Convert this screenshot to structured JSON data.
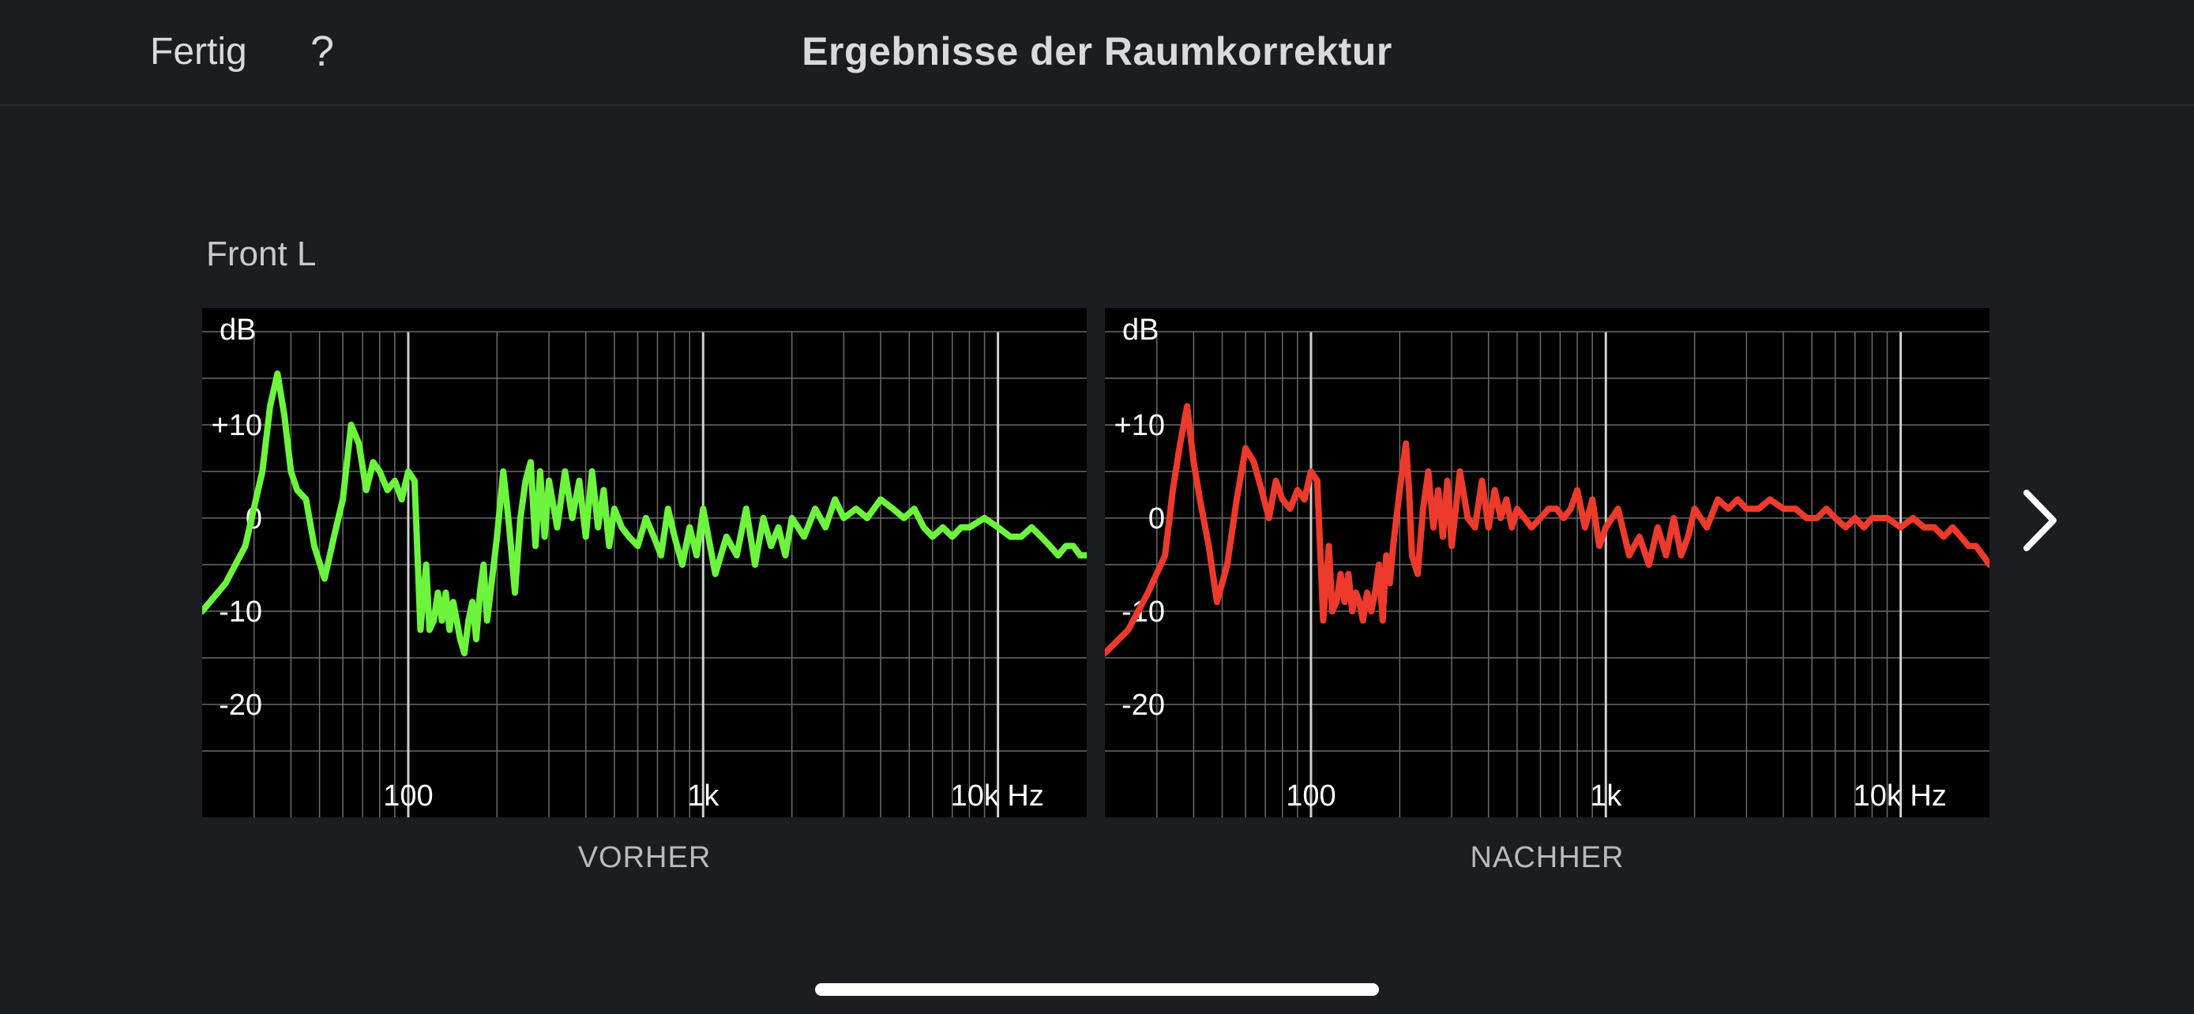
{
  "header": {
    "done_label": "Fertig",
    "help_label": "?",
    "title": "Ergebnisse der Raumkorrektur"
  },
  "section": {
    "label": "Front L"
  },
  "icons": {
    "next": "chevron-right-icon"
  },
  "colors": {
    "before": "#6cf53c",
    "after": "#ee3a2b",
    "grid": "#6b6b6b",
    "background": "#1c1d20"
  },
  "chart_data": [
    {
      "type": "line",
      "caption": "VORHER",
      "ylabel": "dB",
      "x_scale": "log",
      "xlim": [
        20,
        20000
      ],
      "ylim": [
        -30,
        20
      ],
      "y_ticks": [
        {
          "value": 10,
          "label": "+10"
        },
        {
          "value": 0,
          "label": "0"
        },
        {
          "value": -10,
          "label": "-10"
        },
        {
          "value": -20,
          "label": "-20"
        }
      ],
      "x_ticks": [
        {
          "value": 100,
          "label": "100"
        },
        {
          "value": 1000,
          "label": "1k"
        },
        {
          "value": 10000,
          "label": "10k Hz"
        }
      ],
      "series": [
        {
          "color": "#6cf53c",
          "x": [
            20,
            24,
            28,
            32,
            34,
            36,
            38,
            40,
            42,
            45,
            48,
            52,
            56,
            60,
            64,
            68,
            72,
            76,
            80,
            85,
            90,
            95,
            100,
            105,
            110,
            115,
            118,
            122,
            126,
            130,
            134,
            138,
            142,
            146,
            150,
            155,
            160,
            165,
            170,
            175,
            180,
            185,
            190,
            200,
            210,
            215,
            220,
            230,
            240,
            250,
            260,
            270,
            280,
            290,
            300,
            320,
            340,
            360,
            380,
            400,
            420,
            440,
            460,
            480,
            500,
            530,
            560,
            600,
            640,
            680,
            720,
            760,
            800,
            850,
            900,
            950,
            1000,
            1100,
            1200,
            1300,
            1400,
            1500,
            1600,
            1700,
            1800,
            1900,
            2000,
            2200,
            2400,
            2600,
            2800,
            3000,
            3300,
            3600,
            4000,
            4400,
            4800,
            5200,
            5600,
            6000,
            6500,
            7000,
            7500,
            8000,
            9000,
            10000,
            11000,
            12000,
            13000,
            14000,
            15000,
            16000,
            17000,
            18000,
            19000,
            20000
          ],
          "y": [
            -10,
            -7,
            -3,
            5,
            12,
            15.5,
            11,
            5,
            3,
            2,
            -3,
            -6.5,
            -2,
            2,
            10,
            8,
            3,
            6,
            5,
            3,
            4,
            2,
            5,
            4,
            -12,
            -5,
            -12,
            -11,
            -8,
            -11,
            -8,
            -12,
            -9,
            -11,
            -13,
            -14.5,
            -11,
            -9,
            -13,
            -8,
            -5,
            -11,
            -8,
            -2,
            5,
            2,
            -1,
            -8,
            0,
            4,
            6,
            -3,
            5,
            -2,
            4,
            -1,
            5,
            0,
            4,
            -2,
            5,
            -1,
            3,
            -3,
            1,
            -1,
            -2,
            -3,
            0,
            -2,
            -4,
            1,
            -2,
            -5,
            -1,
            -4,
            1,
            -6,
            -2,
            -4,
            1,
            -5,
            0,
            -3,
            -1,
            -4,
            0,
            -2,
            1,
            -1,
            2,
            0,
            1,
            0,
            2,
            1,
            0,
            1,
            -1,
            -2,
            -1,
            -2,
            -1,
            -1,
            0,
            -1,
            -2,
            -2,
            -1,
            -2,
            -3,
            -4,
            -3,
            -3,
            -4,
            -4
          ]
        }
      ]
    },
    {
      "type": "line",
      "caption": "NACHHER",
      "ylabel": "dB",
      "x_scale": "log",
      "xlim": [
        20,
        20000
      ],
      "ylim": [
        -30,
        20
      ],
      "y_ticks": [
        {
          "value": 10,
          "label": "+10"
        },
        {
          "value": 0,
          "label": "0"
        },
        {
          "value": -10,
          "label": "-10"
        },
        {
          "value": -20,
          "label": "-20"
        }
      ],
      "x_ticks": [
        {
          "value": 100,
          "label": "100"
        },
        {
          "value": 1000,
          "label": "1k"
        },
        {
          "value": 10000,
          "label": "10k Hz"
        }
      ],
      "series": [
        {
          "color": "#ee3a2b",
          "x": [
            20,
            24,
            28,
            32,
            34,
            36,
            38,
            40,
            42,
            45,
            48,
            52,
            56,
            60,
            64,
            68,
            72,
            76,
            80,
            85,
            90,
            95,
            100,
            105,
            110,
            115,
            118,
            122,
            126,
            130,
            134,
            138,
            142,
            146,
            150,
            155,
            160,
            165,
            170,
            175,
            180,
            185,
            190,
            200,
            210,
            215,
            220,
            230,
            240,
            250,
            260,
            270,
            280,
            290,
            300,
            320,
            340,
            360,
            380,
            400,
            420,
            440,
            460,
            480,
            500,
            530,
            560,
            600,
            640,
            680,
            720,
            760,
            800,
            850,
            900,
            950,
            1000,
            1100,
            1200,
            1300,
            1400,
            1500,
            1600,
            1700,
            1800,
            1900,
            2000,
            2200,
            2400,
            2600,
            2800,
            3000,
            3300,
            3600,
            4000,
            4400,
            4800,
            5200,
            5600,
            6000,
            6500,
            7000,
            7500,
            8000,
            9000,
            10000,
            11000,
            12000,
            13000,
            14000,
            15000,
            16000,
            17000,
            18000,
            19000,
            20000
          ],
          "y": [
            -14.5,
            -12,
            -8,
            -4,
            3,
            8,
            12,
            6,
            2,
            -3,
            -9,
            -5,
            2,
            7.5,
            6,
            3,
            0,
            4,
            2,
            1,
            3,
            2,
            5,
            4,
            -11,
            -3,
            -10,
            -9,
            -6,
            -9,
            -6,
            -10,
            -8,
            -9,
            -11,
            -8,
            -10,
            -8,
            -5,
            -11,
            -4,
            -7,
            -3,
            3,
            8,
            3,
            -4,
            -6,
            1,
            5,
            -1,
            3,
            -2,
            4,
            -3,
            5,
            0,
            -1,
            4,
            -1,
            3,
            0,
            2,
            -1,
            1,
            0,
            -1,
            0,
            1,
            1,
            0,
            1,
            3,
            -1,
            2,
            -3,
            -1,
            1,
            -4,
            -2,
            -5,
            -1,
            -4,
            0,
            -4,
            -2,
            1,
            -1,
            2,
            1,
            2,
            1,
            1,
            2,
            1,
            1,
            0,
            0,
            1,
            0,
            -1,
            0,
            -1,
            0,
            0,
            -1,
            0,
            -1,
            -1,
            -2,
            -1,
            -2,
            -3,
            -3,
            -4,
            -5
          ]
        }
      ]
    }
  ]
}
